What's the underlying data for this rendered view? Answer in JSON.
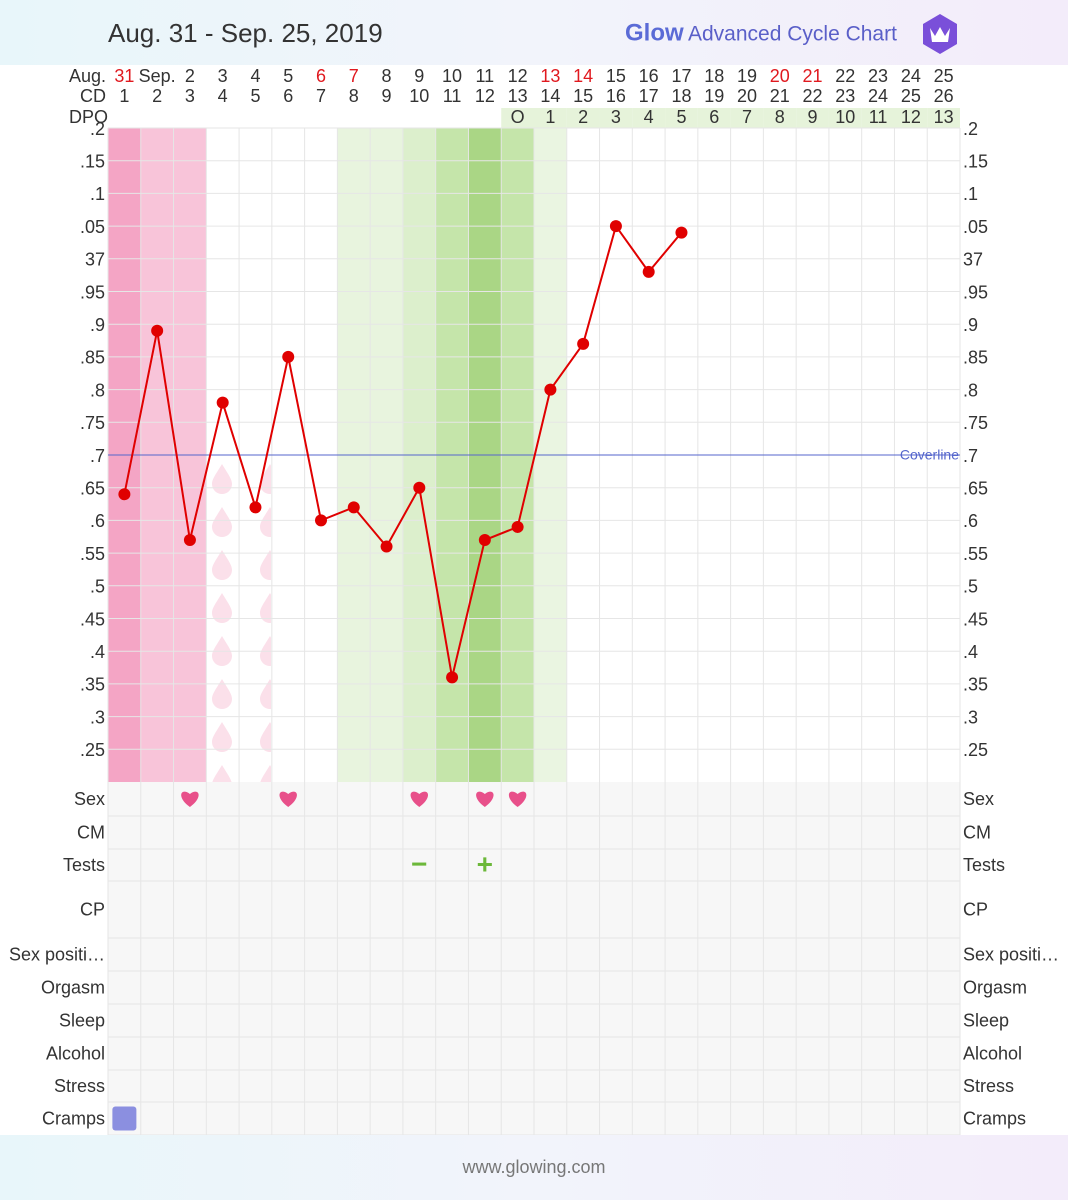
{
  "header": {
    "title": "Aug. 31 - Sep. 25, 2019",
    "brand": "Glow",
    "brand_subtitle": "Advanced Cycle Chart"
  },
  "chart_data": {
    "type": "line",
    "month_label": "Aug.",
    "cd_label": "CD",
    "dpo_label": "DPO",
    "categories": [
      "31",
      "Sep.",
      "2",
      "3",
      "4",
      "5",
      "6",
      "7",
      "8",
      "9",
      "10",
      "11",
      "12",
      "13",
      "14",
      "15",
      "16",
      "17",
      "18",
      "19",
      "20",
      "21",
      "22",
      "23",
      "24",
      "25"
    ],
    "date_colors": [
      "#e0191f",
      "#333333",
      "#333333",
      "#333333",
      "#333333",
      "#333333",
      "#e0191f",
      "#e0191f",
      "#333333",
      "#333333",
      "#333333",
      "#333333",
      "#333333",
      "#e0191f",
      "#e0191f",
      "#333333",
      "#333333",
      "#333333",
      "#333333",
      "#333333",
      "#e0191f",
      "#e0191f",
      "#333333",
      "#333333",
      "#333333",
      "#333333"
    ],
    "cd": [
      1,
      2,
      3,
      4,
      5,
      6,
      7,
      8,
      9,
      10,
      11,
      12,
      13,
      14,
      15,
      16,
      17,
      18,
      19,
      20,
      21,
      22,
      23,
      24,
      25,
      26
    ],
    "dpo": [
      null,
      null,
      null,
      null,
      null,
      null,
      null,
      null,
      null,
      null,
      null,
      null,
      "O",
      1,
      2,
      3,
      4,
      5,
      6,
      7,
      8,
      9,
      10,
      11,
      12,
      13
    ],
    "dpo_fill": "#e6f3da",
    "column_fills": [
      "#f4a5c5",
      "#f8c4d9",
      "#f8c4d9",
      null,
      null,
      null,
      null,
      "#e8f4de",
      "#e8f4de",
      "#dcefcc",
      "#c5e5aa",
      "#aad685",
      "#c5e5aa",
      "#eaf5e1",
      null,
      null,
      null,
      null,
      null,
      null,
      null,
      null,
      null,
      null,
      null,
      null
    ],
    "series": [
      {
        "name": "Temperature",
        "color": "#e00000",
        "values": [
          36.64,
          36.89,
          36.57,
          36.78,
          36.62,
          36.85,
          36.6,
          36.62,
          36.56,
          36.65,
          36.36,
          36.57,
          36.59,
          36.8,
          36.87,
          37.05,
          36.98,
          37.04,
          null,
          null,
          null,
          null,
          null,
          null,
          null,
          null
        ]
      }
    ],
    "coverline": {
      "label": "Coverline",
      "value": 36.7,
      "color": "#5566cc"
    },
    "ylim": [
      36.2,
      37.2
    ],
    "yticks": [
      {
        "value": 37.2,
        "label": ".2"
      },
      {
        "value": 37.15,
        "label": ".15"
      },
      {
        "value": 37.1,
        "label": ".1"
      },
      {
        "value": 37.05,
        "label": ".05"
      },
      37,
      {
        "value": 36.95,
        "label": ".95"
      },
      {
        "value": 36.9,
        "label": ".9"
      },
      {
        "value": 36.85,
        "label": ".85"
      },
      {
        "value": 36.8,
        "label": ".8"
      },
      {
        "value": 36.75,
        "label": ".75"
      },
      {
        "value": 36.7,
        "label": ".7"
      },
      {
        "value": 36.65,
        "label": ".65"
      },
      {
        "value": 36.6,
        "label": ".6"
      },
      {
        "value": 36.55,
        "label": ".55"
      },
      {
        "value": 36.5,
        "label": ".5"
      },
      {
        "value": 36.45,
        "label": ".45"
      },
      {
        "value": 36.4,
        "label": ".4"
      },
      {
        "value": 36.35,
        "label": ".35"
      },
      {
        "value": 36.3,
        "label": ".3"
      },
      {
        "value": 36.25,
        "label": ".25"
      }
    ],
    "grid": true
  },
  "symptoms": [
    {
      "name": "Sex",
      "days": [
        3,
        6,
        10,
        12,
        13
      ],
      "color": "#e8508a"
    },
    {
      "name": "CM",
      "days": []
    },
    {
      "name": "Tests",
      "results": [
        {
          "day": 10,
          "result": "−"
        },
        {
          "day": 12,
          "result": "+"
        }
      ],
      "color": "#6cb83a"
    },
    {
      "name": "CP",
      "days": []
    },
    {
      "name": "Sex positi…",
      "days": []
    },
    {
      "name": "Orgasm",
      "days": []
    },
    {
      "name": "Sleep",
      "days": []
    },
    {
      "name": "Alcohol",
      "days": []
    },
    {
      "name": "Stress",
      "days": []
    },
    {
      "name": "Cramps",
      "days": [
        1
      ],
      "color": "#8b8fe0"
    }
  ],
  "footer": {
    "url": "www.glowing.com"
  }
}
